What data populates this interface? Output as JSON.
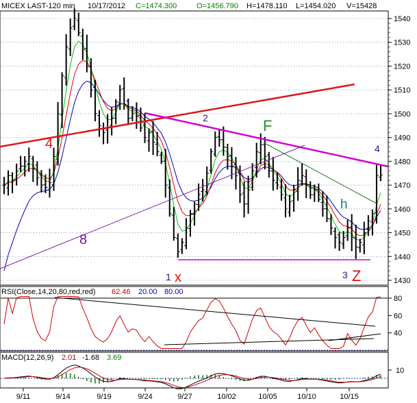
{
  "header": {
    "symbol": "MICEX LAST-120 min",
    "date": "10/17/2012",
    "close": "C=1474.300",
    "open": "O=1456.790",
    "high": "H=1478.110",
    "low": "L=1454.020",
    "volume": "V=15428"
  },
  "rsi_label": {
    "name": "RSI(Close,14,20,80,red,red)",
    "v1": "62.46",
    "v2": "20.00",
    "v3": "80.00"
  },
  "macd_label": {
    "name": "MACD(12,26,9)",
    "v1": "2.01",
    "v2": "-1.68",
    "v3": "3.69"
  },
  "annotations": {
    "n4_left": "4",
    "n8": "8",
    "n2": "2",
    "F": "F",
    "n4_right": "4",
    "h": "h",
    "n1": "1",
    "x": "x",
    "n3": "3",
    "Z": "Z"
  },
  "colors": {
    "price_bar": "#000000",
    "ma_short": "#00c000",
    "ma_mid": "#e00000",
    "ma_long": "#0000c0",
    "trend_red": "#d81818",
    "trend_magenta": "#d000d0",
    "trend_purple": "#8020a0",
    "trend_green": "#207a20",
    "rsi_line": "#d00000",
    "grid": "#4040a0",
    "macd_hist": "#008000"
  },
  "chart_data": {
    "type": "ohlc",
    "price_axis": {
      "ticks": [
        1430,
        1440,
        1450,
        1460,
        1470,
        1480,
        1490,
        1500,
        1510,
        1520,
        1530,
        1540
      ],
      "ylim": [
        1426,
        1546
      ]
    },
    "rsi_axis": {
      "ticks": [
        40,
        60,
        80
      ],
      "levels": [
        20,
        80
      ]
    },
    "macd_axis": {
      "ticks": [
        10
      ]
    },
    "x_ticks": [
      "9/11",
      "9/14",
      "9/19",
      "9/24",
      "9/27",
      "10/02",
      "10/05",
      "10/10",
      "10/15"
    ],
    "close": [
      1470,
      1474,
      1472,
      1476,
      1478,
      1480,
      1482,
      1477,
      1473,
      1470,
      1469,
      1471,
      1482,
      1500,
      1516,
      1528,
      1536,
      1540,
      1534,
      1527,
      1520,
      1510,
      1500,
      1495,
      1492,
      1494,
      1498,
      1505,
      1510,
      1504,
      1498,
      1500,
      1499,
      1494,
      1490,
      1492,
      1488,
      1484,
      1480,
      1470,
      1458,
      1448,
      1442,
      1446,
      1452,
      1458,
      1462,
      1466,
      1468,
      1475,
      1484,
      1490,
      1489,
      1486,
      1482,
      1478,
      1474,
      1466,
      1462,
      1468,
      1476,
      1484,
      1487,
      1482,
      1476,
      1472,
      1470,
      1466,
      1460,
      1463,
      1468,
      1472,
      1474,
      1470,
      1466,
      1468,
      1464,
      1460,
      1456,
      1452,
      1448,
      1446,
      1448,
      1452,
      1448,
      1444,
      1446,
      1450,
      1455,
      1458,
      1474,
      1474.3
    ]
  }
}
